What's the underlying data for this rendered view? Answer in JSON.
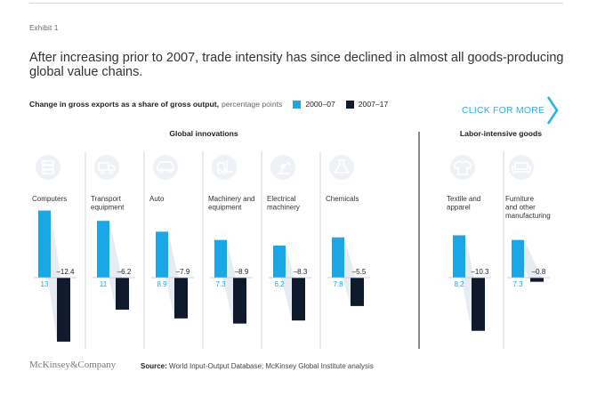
{
  "exhibit": "Exhibit 1",
  "headline": "After increasing prior to 2007, trade intensity has since declined in almost all goods-producing global value chains.",
  "subtitle": {
    "bold": "Change in gross exports as a share of gross output,",
    "unit": "percentage points"
  },
  "cta": {
    "label": "CLICK FOR MORE"
  },
  "footer": {
    "logo": "McKinsey&Company",
    "source_label": "Source:",
    "source_text": "World Input-Output Database; McKinsey Global Institute analysis"
  },
  "colors": {
    "period1": "#1aa7e6",
    "period2": "#0f1b2d",
    "cta": "#28b4e6",
    "icon_bg": "#eef1f5",
    "shade": "#dde4ee"
  },
  "chart_data": {
    "type": "bar",
    "ylabel": "percentage points",
    "legend": [
      {
        "name": "2000–07",
        "color": "#1aa7e6"
      },
      {
        "name": "2007–17",
        "color": "#0f1b2d"
      }
    ],
    "groups": [
      {
        "name": "Global innovations",
        "categories": [
          {
            "label": [
              "Computers"
            ],
            "icon": "server-icon",
            "v1": 13,
            "v1_text": "13",
            "v2": -12.4,
            "v2_text": "–12.4"
          },
          {
            "label": [
              "Transport",
              "equipment"
            ],
            "icon": "truck-icon",
            "v1": 11,
            "v1_text": "11",
            "v2": -6.2,
            "v2_text": "–6.2"
          },
          {
            "label": [
              "Auto"
            ],
            "icon": "car-icon",
            "v1": 8.9,
            "v1_text": "8.9",
            "v2": -7.9,
            "v2_text": "–7.9"
          },
          {
            "label": [
              "Machinery and",
              "equipment"
            ],
            "icon": "forklift-icon",
            "v1": 7.3,
            "v1_text": "7.3",
            "v2": -8.9,
            "v2_text": "–8.9"
          },
          {
            "label": [
              "Electrical",
              "machinery"
            ],
            "icon": "robot-arm-icon",
            "v1": 6.2,
            "v1_text": "6.2",
            "v2": -8.3,
            "v2_text": "–8.3"
          },
          {
            "label": [
              "Chemicals"
            ],
            "icon": "flask-icon",
            "v1": 7.8,
            "v1_text": "7.8",
            "v2": -5.5,
            "v2_text": "–5.5"
          }
        ]
      },
      {
        "name": "Labor-intensive goods",
        "categories": [
          {
            "label": [
              "Textile and",
              "apparel"
            ],
            "icon": "shirt-icon",
            "v1": 8.2,
            "v1_text": "8.2",
            "v2": -10.3,
            "v2_text": "–10.3"
          },
          {
            "label": [
              "Furniture",
              "and other",
              "manufacturing"
            ],
            "icon": "sofa-icon",
            "v1": 7.3,
            "v1_text": "7.3",
            "v2": -0.8,
            "v2_text": "–0.8"
          }
        ]
      }
    ]
  }
}
